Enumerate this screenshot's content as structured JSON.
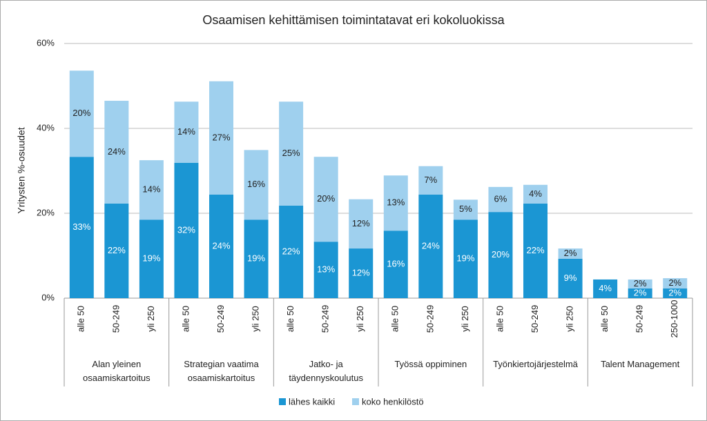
{
  "chart_data": {
    "type": "stacked-bar",
    "title": "Osaamisen kehittämisen toimintatavat eri kokoluokissa",
    "y_label": "Yritysten %-osuudet",
    "groups": [
      {
        "name": "Alan yleinen osaamiskartoitus",
        "categories": [
          "alle 50",
          "50-249",
          "yli 250"
        ]
      },
      {
        "name": "Strategian vaatima osaamiskartoitus",
        "categories": [
          "alle 50",
          "50-249",
          "yli 250"
        ]
      },
      {
        "name": "Jatko- ja täydennyskoulutus",
        "categories": [
          "alle 50",
          "50-249",
          "yli 250"
        ]
      },
      {
        "name": "Työssä oppiminen",
        "categories": [
          "alle 50",
          "50-249",
          "yli 250"
        ]
      },
      {
        "name": "Työnkiertojärjestelmä",
        "categories": [
          "alle 50",
          "50-249",
          "yli 250"
        ]
      },
      {
        "name": "Talent Management",
        "categories": [
          "alle 50",
          "50-249",
          "250-1000"
        ]
      }
    ],
    "series": [
      {
        "name": "lähes kaikki",
        "color": "#1b96d3",
        "values": [
          33.3,
          22.3,
          18.5,
          31.9,
          24.4,
          18.5,
          21.8,
          13.3,
          11.7,
          15.9,
          24.4,
          18.5,
          20.3,
          22.3,
          9.3,
          4.4,
          2.3,
          2.3
        ],
        "value_labels": [
          "33%",
          "22%",
          "19%",
          "32%",
          "24%",
          "19%",
          "22%",
          "13%",
          "12%",
          "16%",
          "24%",
          "19%",
          "20%",
          "22%",
          "9%",
          "4%",
          "2%",
          "2%"
        ]
      },
      {
        "name": "koko henkilöstö",
        "color": "#9fd0ee",
        "values": [
          20.3,
          24.2,
          14,
          14.4,
          26.7,
          16.4,
          24.5,
          20,
          11.6,
          13,
          6.7,
          4.7,
          5.9,
          4.4,
          2.4,
          null,
          2.1,
          2.4
        ],
        "value_labels": [
          "20%",
          "24%",
          "14%",
          "14%",
          "27%",
          "16%",
          "25%",
          "20%",
          "12%",
          "13%",
          "7%",
          "5%",
          "6%",
          "4%",
          "2%",
          null,
          "2%",
          "2%"
        ]
      }
    ],
    "ylim": [
      0,
      60
    ],
    "yticks": [
      {
        "value": 0,
        "label": "0%"
      },
      {
        "value": 20,
        "label": "20%"
      },
      {
        "value": 40,
        "label": "40%"
      },
      {
        "value": 60,
        "label": "60%"
      }
    ],
    "grid": true,
    "legend": "bottom"
  }
}
